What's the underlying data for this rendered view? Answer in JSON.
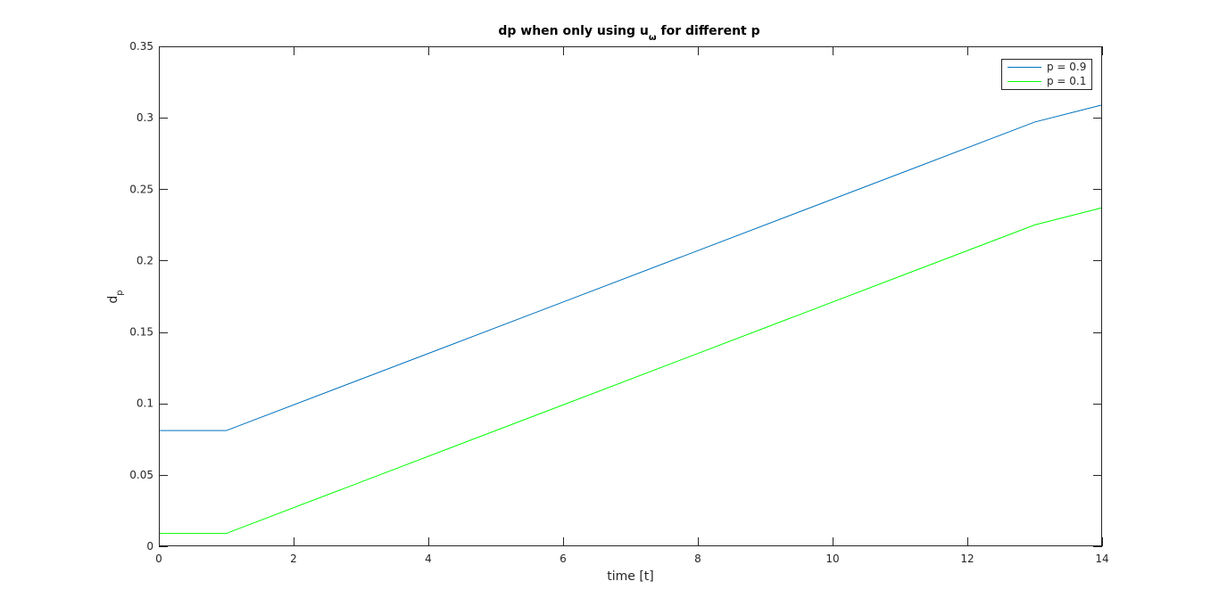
{
  "chart_data": {
    "type": "line",
    "title": "dp when only using u",
    "title_subscript": "ω",
    "title_suffix": "for different p",
    "xlabel": "time [t]",
    "ylabel": "d",
    "ylabel_subscript": "p",
    "xlim": [
      0,
      14
    ],
    "ylim": [
      0,
      0.35
    ],
    "xticks": [
      0,
      2,
      4,
      6,
      8,
      10,
      12,
      14
    ],
    "xtick_labels": [
      "0",
      "2",
      "4",
      "6",
      "8",
      "10",
      "12",
      "14"
    ],
    "yticks": [
      0,
      0.05,
      0.1,
      0.15,
      0.2,
      0.25,
      0.3,
      0.35
    ],
    "ytick_labels": [
      "0",
      "0.05",
      "0.1",
      "0.15",
      "0.2",
      "0.25",
      "0.3",
      "0.35"
    ],
    "grid": false,
    "legend_position": "top-right",
    "series": [
      {
        "name": "p = 0.9",
        "color": "#0072BD",
        "x": [
          0,
          1,
          13,
          14
        ],
        "y": [
          0.081,
          0.081,
          0.297,
          0.309
        ]
      },
      {
        "name": "p = 0.1",
        "color": "#00FF00",
        "x": [
          0,
          1,
          13,
          14
        ],
        "y": [
          0.009,
          0.009,
          0.225,
          0.237
        ]
      }
    ]
  }
}
